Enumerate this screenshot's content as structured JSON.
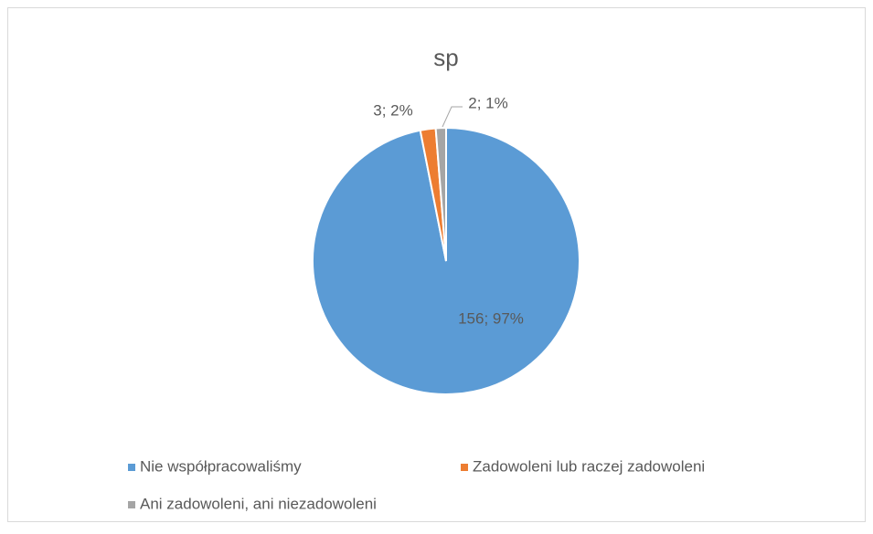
{
  "chart_data": {
    "type": "pie",
    "title": "sp",
    "categories": [
      "Nie współpracowaliśmy",
      "Zadowoleni lub raczej zadowoleni",
      "Ani zadowoleni, ani niezadowoleni"
    ],
    "values": [
      156,
      3,
      2
    ],
    "value_labels": [
      "156; 97%",
      "3; 2%",
      "2; 1%"
    ],
    "colors": [
      "#5b9bd5",
      "#ed7d31",
      "#a5a5a5"
    ],
    "legend": "bottom"
  }
}
